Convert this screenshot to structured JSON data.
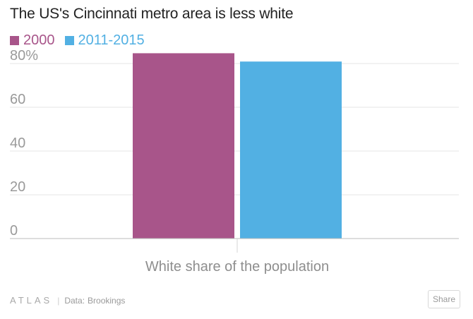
{
  "header": {
    "title": "The US's Cincinnati metro area is less white"
  },
  "chart_data": {
    "type": "bar",
    "title": "The US's Cincinnati metro area is less white",
    "categories": [
      "White share of the population"
    ],
    "series": [
      {
        "name": "2000",
        "values": [
          84.7
        ],
        "color": "#a8558a"
      },
      {
        "name": "2011-2015",
        "values": [
          80.9
        ],
        "color": "#52b0e3"
      }
    ],
    "ylim": [
      0,
      80
    ],
    "yticks": [
      0,
      20,
      40,
      60,
      80
    ],
    "ytick_labels": [
      "0",
      "20",
      "40",
      "60",
      "80%"
    ],
    "xlabel": "White share of the population",
    "ylabel": "",
    "grid": true,
    "legend": "top-left"
  },
  "footer": {
    "logo": "ATLAS",
    "separator": "|",
    "source_prefix": "Data:",
    "source": "Brookings",
    "share_label": "Share"
  },
  "colors": {
    "gridline": "#e6e6e6",
    "axis": "#bbbbbb"
  }
}
